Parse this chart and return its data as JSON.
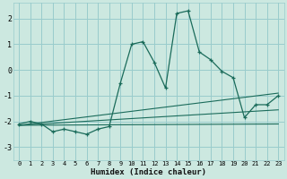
{
  "xlabel": "Humidex (Indice chaleur)",
  "background_color": "#cce8e0",
  "grid_color": "#99cccc",
  "line_color": "#1a6b5a",
  "xlim": [
    -0.5,
    23.5
  ],
  "ylim": [
    -3.5,
    2.6
  ],
  "xticks": [
    0,
    1,
    2,
    3,
    4,
    5,
    6,
    7,
    8,
    9,
    10,
    11,
    12,
    13,
    14,
    15,
    16,
    17,
    18,
    19,
    20,
    21,
    22,
    23
  ],
  "yticks": [
    -3,
    -2,
    -1,
    0,
    1,
    2
  ],
  "x_data": [
    0,
    1,
    2,
    3,
    4,
    5,
    6,
    7,
    8,
    9,
    10,
    11,
    12,
    13,
    14,
    15,
    16,
    17,
    18,
    19,
    20,
    21,
    22,
    23
  ],
  "y_data": [
    -2.1,
    -2.0,
    -2.1,
    -2.4,
    -2.3,
    -2.4,
    -2.5,
    -2.3,
    -2.2,
    -0.5,
    1.0,
    1.1,
    0.3,
    -0.7,
    2.2,
    2.3,
    0.7,
    0.4,
    -0.05,
    -0.3,
    -1.85,
    -1.35,
    -1.35,
    -1.0
  ],
  "line1_x": [
    0,
    23
  ],
  "line1_y": [
    -2.15,
    -0.9
  ],
  "line2_x": [
    0,
    23
  ],
  "line2_y": [
    -2.15,
    -1.55
  ],
  "line3_x": [
    0,
    23
  ],
  "line3_y": [
    -2.15,
    -2.1
  ]
}
